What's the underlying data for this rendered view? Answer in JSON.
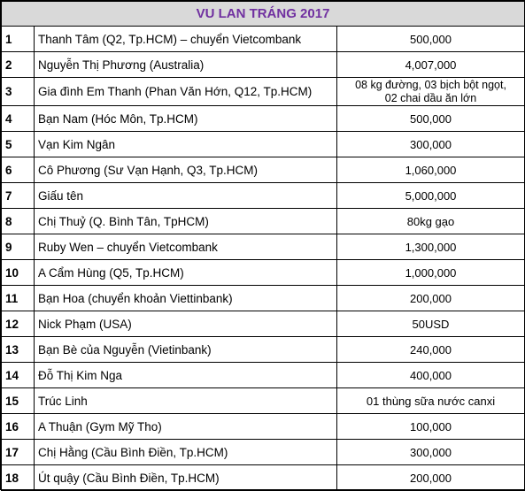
{
  "title": "VU LAN TRÁNG 2017",
  "rows": [
    {
      "no": "1",
      "name": "Thanh Tâm (Q2, Tp.HCM) – chuyển Vietcombank",
      "amount": "500,000"
    },
    {
      "no": "2",
      "name": "Nguyễn Thị Phương (Australia)",
      "amount": "4,007,000"
    },
    {
      "no": "3",
      "name": "Gia đình Em Thanh (Phan Văn Hớn, Q12, Tp.HCM)",
      "amount_lines": [
        "08 kg đường, 03 bịch bột ngọt,",
        "02 chai dầu ăn lớn"
      ]
    },
    {
      "no": "4",
      "name": "Bạn Nam (Hóc Môn, Tp.HCM)",
      "amount": "500,000"
    },
    {
      "no": "5",
      "name": "Vạn Kim Ngân",
      "amount": "300,000"
    },
    {
      "no": "6",
      "name": "Cô Phương (Sư Vạn Hạnh, Q3, Tp.HCM)",
      "amount": "1,060,000"
    },
    {
      "no": "7",
      "name": "Giấu tên",
      "amount": "5,000,000"
    },
    {
      "no": "8",
      "name": "Chị Thuỷ (Q. Bình Tân, TpHCM)",
      "amount": "80kg gạo"
    },
    {
      "no": "9",
      "name": "Ruby Wen – chuyển Vietcombank",
      "amount": "1,300,000"
    },
    {
      "no": "10",
      "name": "A Cẩm Hùng (Q5, Tp.HCM)",
      "amount": "1,000,000"
    },
    {
      "no": "11",
      "name": "Bạn Hoa (chuyển khoản Viettinbank)",
      "amount": "200,000"
    },
    {
      "no": "12",
      "name": "Nick Phạm (USA)",
      "amount": "50USD"
    },
    {
      "no": "13",
      "name": "Bạn Bè của Nguyễn (Vietinbank)",
      "amount": "240,000"
    },
    {
      "no": "14",
      "name": "Đỗ Thị Kim Nga",
      "amount": "400,000"
    },
    {
      "no": "15",
      "name": "Trúc Linh",
      "amount": "01 thùng sữa nước canxi"
    },
    {
      "no": "16",
      "name": "A Thuận (Gym Mỹ Tho)",
      "amount": "100,000"
    },
    {
      "no": "17",
      "name": "Chị Hằng (Cầu Bình Điền, Tp.HCM)",
      "amount": "300,000"
    },
    {
      "no": "18",
      "name": "Út quậy (Cầu Bình Điền, Tp.HCM)",
      "amount": "200,000"
    }
  ]
}
